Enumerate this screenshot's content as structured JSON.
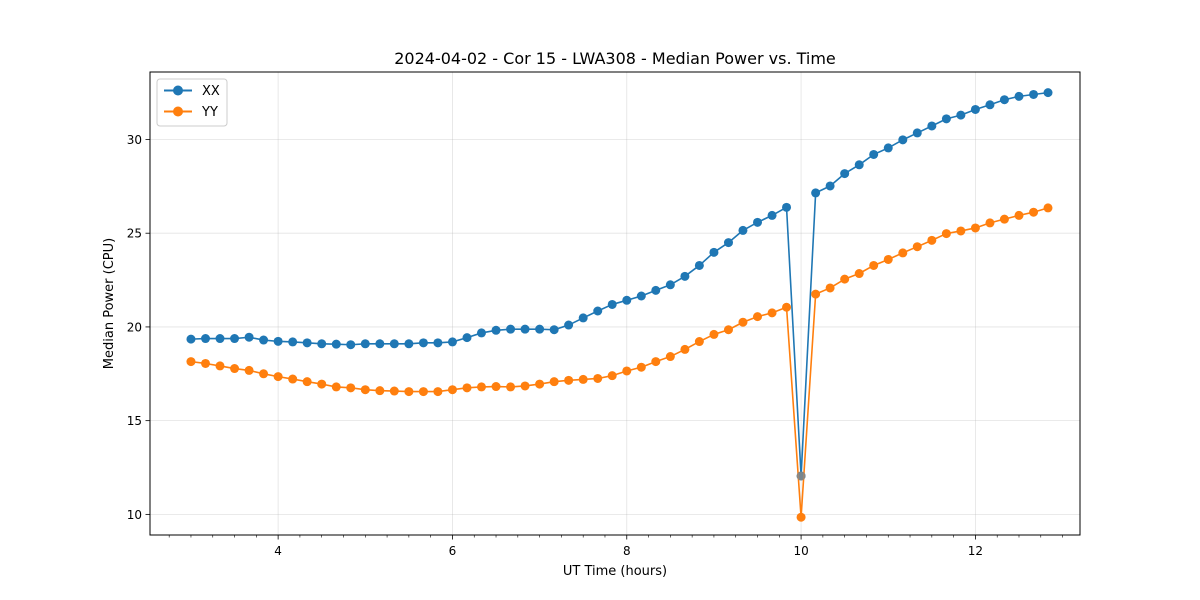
{
  "chart_data": {
    "type": "line",
    "title": "2024-04-02 - Cor 15 - LWA308 - Median Power vs. Time",
    "xlabel": "UT Time (hours)",
    "ylabel": "Median Power (CPU)",
    "xlim": [
      2.53,
      13.2
    ],
    "ylim": [
      8.9,
      33.6
    ],
    "xticks": [
      4,
      6,
      8,
      10,
      12
    ],
    "xtick_labels": [
      "4",
      "6",
      "8",
      "10",
      "12"
    ],
    "yticks": [
      10,
      15,
      20,
      25,
      30
    ],
    "ytick_labels": [
      "10",
      "15",
      "20",
      "25",
      "30"
    ],
    "grid": true,
    "legend": "top-left",
    "x": [
      3.0,
      3.167,
      3.333,
      3.5,
      3.667,
      3.833,
      4.0,
      4.167,
      4.333,
      4.5,
      4.667,
      4.833,
      5.0,
      5.167,
      5.333,
      5.5,
      5.667,
      5.833,
      6.0,
      6.167,
      6.333,
      6.5,
      6.667,
      6.833,
      7.0,
      7.167,
      7.333,
      7.5,
      7.667,
      7.833,
      8.0,
      8.167,
      8.333,
      8.5,
      8.667,
      8.833,
      9.0,
      9.167,
      9.333,
      9.5,
      9.667,
      9.833,
      10.0,
      10.167,
      10.333,
      10.5,
      10.667,
      10.833,
      11.0,
      11.167,
      11.333,
      11.5,
      11.667,
      11.833,
      12.0,
      12.167,
      12.333,
      12.5,
      12.667,
      12.833
    ],
    "series": [
      {
        "name": "XX",
        "color": "#1f77b4",
        "values": [
          19.35,
          19.38,
          19.38,
          19.38,
          19.45,
          19.3,
          19.23,
          19.2,
          19.15,
          19.1,
          19.08,
          19.05,
          19.1,
          19.1,
          19.1,
          19.1,
          19.15,
          19.15,
          19.2,
          19.43,
          19.68,
          19.82,
          19.88,
          19.88,
          19.88,
          19.85,
          20.1,
          20.48,
          20.85,
          21.2,
          21.42,
          21.65,
          21.95,
          22.25,
          22.7,
          23.28,
          23.98,
          24.5,
          25.15,
          25.58,
          25.95,
          26.38,
          12.05,
          27.15,
          27.52,
          28.18,
          28.65,
          29.2,
          29.55,
          29.98,
          30.35,
          30.72,
          31.1,
          31.3,
          31.6,
          31.85,
          32.12,
          32.3,
          32.4,
          32.5
        ]
      },
      {
        "name": "YY",
        "color": "#ff7f0e",
        "values": [
          18.15,
          18.05,
          17.92,
          17.78,
          17.68,
          17.5,
          17.35,
          17.22,
          17.08,
          16.95,
          16.8,
          16.75,
          16.65,
          16.6,
          16.58,
          16.55,
          16.55,
          16.55,
          16.65,
          16.75,
          16.8,
          16.82,
          16.8,
          16.85,
          16.95,
          17.08,
          17.15,
          17.2,
          17.25,
          17.4,
          17.65,
          17.85,
          18.15,
          18.42,
          18.8,
          19.22,
          19.6,
          19.85,
          20.25,
          20.55,
          20.75,
          21.05,
          9.85,
          21.75,
          22.08,
          22.55,
          22.85,
          23.28,
          23.6,
          23.95,
          24.28,
          24.62,
          24.98,
          25.12,
          25.28,
          25.55,
          25.75,
          25.95,
          26.12,
          26.35
        ]
      }
    ]
  }
}
